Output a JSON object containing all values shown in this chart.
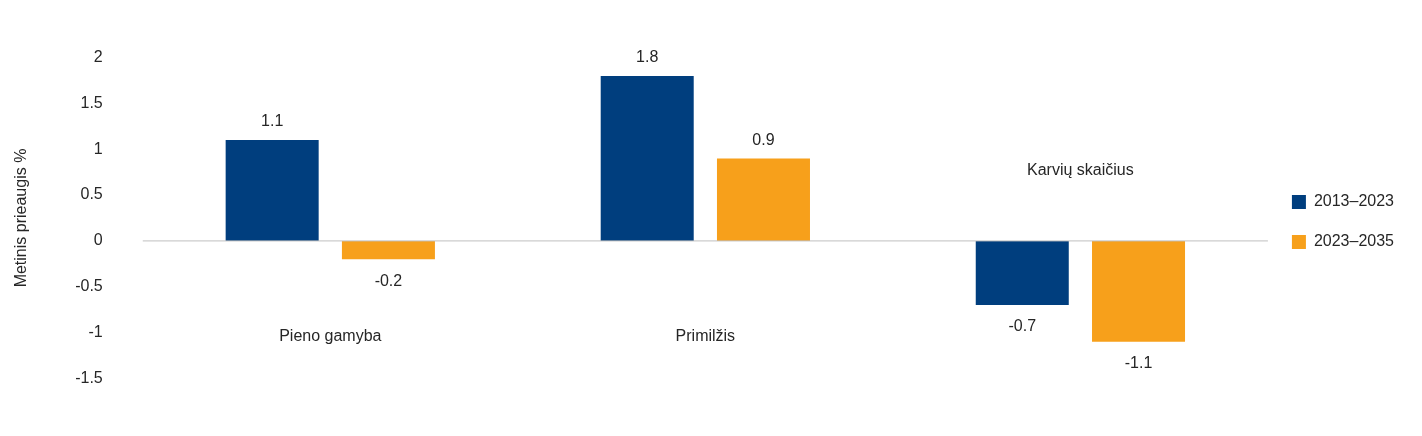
{
  "chart_data": {
    "type": "bar",
    "ylabel": "Metinis prieaugis %",
    "categories": [
      "Pieno gamyba",
      "Primilžis",
      "Karvių skaičius"
    ],
    "series": [
      {
        "name": "2013–2023",
        "color": "#003e7e",
        "values": [
          1.1,
          1.8,
          -0.7
        ]
      },
      {
        "name": "2023–2035",
        "color": "#f7a01b",
        "values": [
          -0.2,
          0.9,
          -1.1
        ]
      }
    ],
    "ylim": [
      -1.5,
      2
    ],
    "yticks": [
      -1.5,
      -1,
      -0.5,
      0,
      0.5,
      1,
      1.5,
      2
    ],
    "grid": false,
    "ref_lines": [
      {
        "axis": "y",
        "value": 0,
        "color": "#bfbfbf"
      }
    ],
    "legend": "right",
    "data_labels": true
  }
}
